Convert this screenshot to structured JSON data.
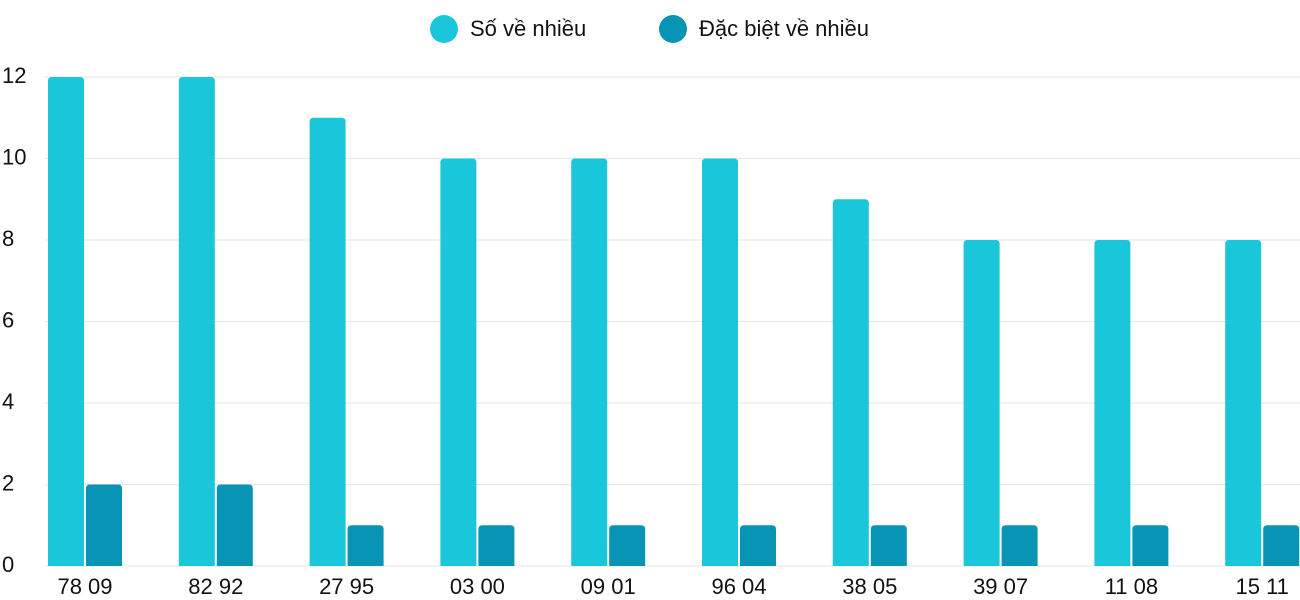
{
  "chart_data": {
    "type": "bar",
    "categories": [
      "78 09",
      "82 92",
      "27 95",
      "03 00",
      "09 01",
      "96 04",
      "38 05",
      "39 07",
      "11 08",
      "15 11"
    ],
    "series": [
      {
        "name": "Số về nhiều",
        "color": "#1ac6da",
        "values": [
          12,
          12,
          11,
          10,
          10,
          10,
          9,
          8,
          8,
          8
        ]
      },
      {
        "name": "Đặc biệt về nhiều",
        "color": "#0894b5",
        "values": [
          2,
          2,
          1,
          1,
          1,
          1,
          1,
          1,
          1,
          1
        ]
      }
    ],
    "ylim": [
      0,
      12
    ],
    "yticks": [
      0,
      2,
      4,
      6,
      8,
      10,
      12
    ],
    "grid": true,
    "legend": "top"
  }
}
